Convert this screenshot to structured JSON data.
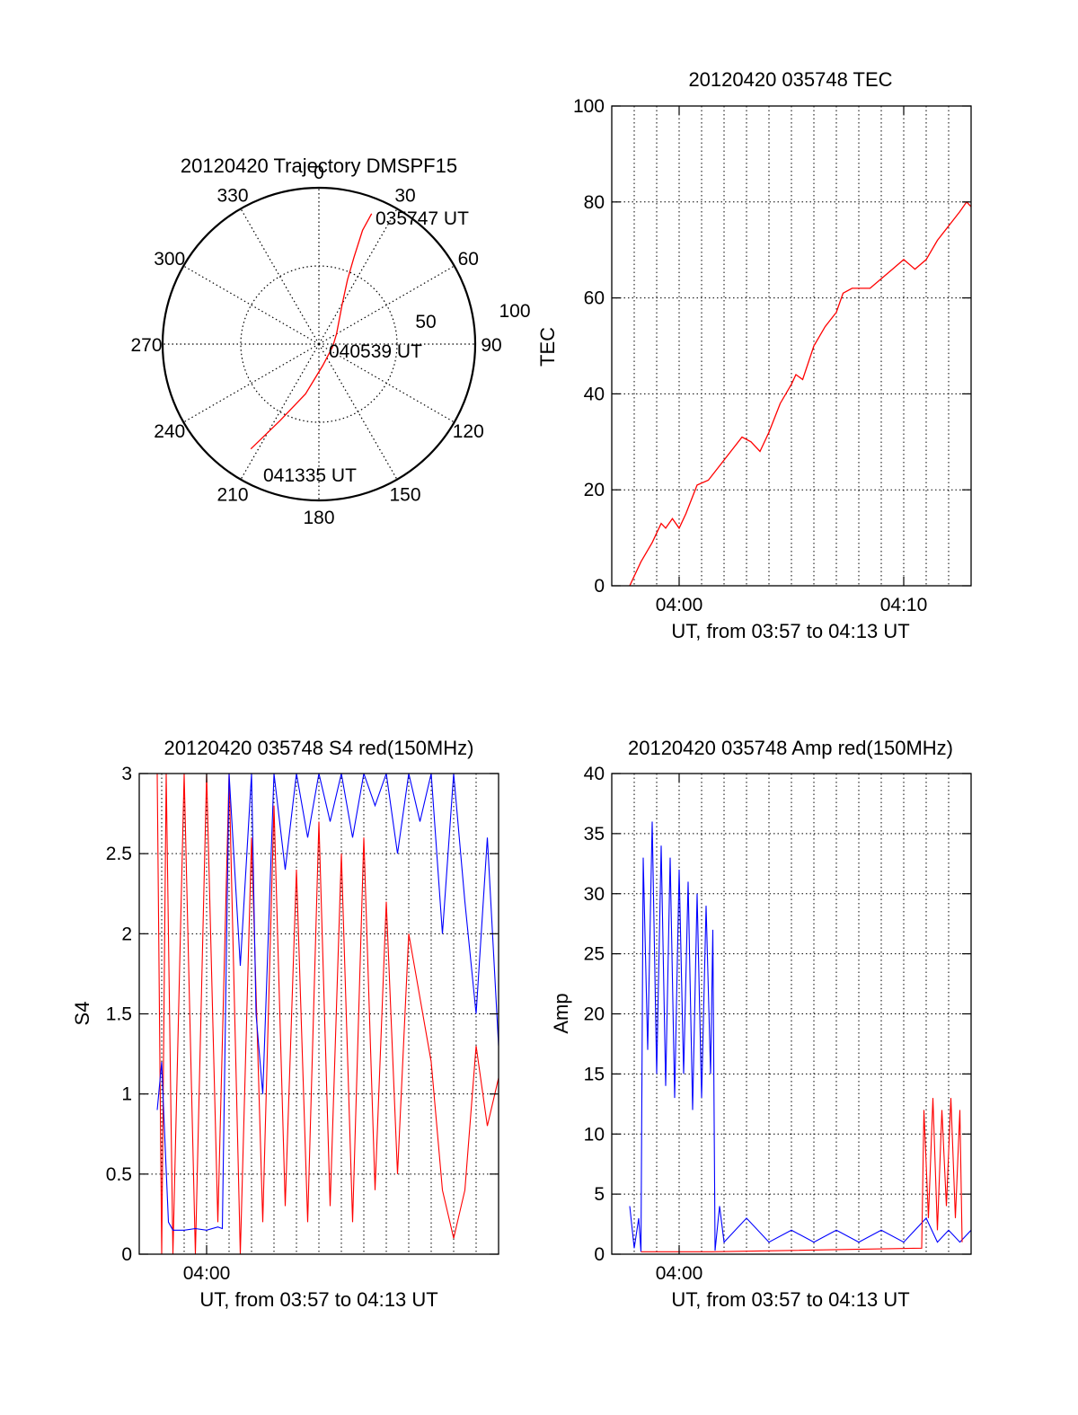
{
  "colors": {
    "red": "#ff0000",
    "blue": "#0000ff",
    "axis": "#000000",
    "grid": "#000000",
    "background": "#ffffff"
  },
  "chart_data": [
    {
      "id": "trajectory",
      "type": "scatter",
      "projection": "polar",
      "title": "20120420 Trajectory DMSPF15",
      "angle_labels": [
        "0",
        "30",
        "60",
        "90",
        "120",
        "150",
        "180",
        "210",
        "240",
        "270",
        "300",
        "330"
      ],
      "angle_values": [
        0,
        30,
        60,
        90,
        120,
        150,
        180,
        210,
        240,
        270,
        300,
        330
      ],
      "radial_labels": [
        "50",
        "100"
      ],
      "radial_values": [
        50,
        100
      ],
      "radial_range": [
        0,
        100
      ],
      "angle_direction": "clockwise from north",
      "grid": true,
      "series": [
        {
          "color": "red",
          "points": [
            {
              "az": 22,
              "r": 90
            },
            {
              "az": 21,
              "r": 78
            },
            {
              "az": 22,
              "r": 60
            },
            {
              "az": 24,
              "r": 45
            },
            {
              "az": 30,
              "r": 30
            },
            {
              "az": 60,
              "r": 13
            },
            {
              "az": 100,
              "r": 9
            },
            {
              "az": 170,
              "r": 14
            },
            {
              "az": 195,
              "r": 33
            },
            {
              "az": 207,
              "r": 55
            },
            {
              "az": 213,
              "r": 80
            }
          ]
        }
      ],
      "annotations": [
        {
          "text": "035747 UT"
        },
        {
          "text": "040539 UT"
        },
        {
          "text": "041335 UT"
        }
      ]
    },
    {
      "id": "tec",
      "type": "line",
      "title": "20120420 035748 TEC",
      "xlabel": "UT, from 03:57 to 04:13 UT",
      "ylabel": "TEC",
      "x_unit": "minutes after 03:57 UT",
      "xlim": [
        0,
        16
      ],
      "ylim": [
        0,
        100
      ],
      "yticks": [
        "0",
        "20",
        "40",
        "60",
        "80",
        "100"
      ],
      "xticks": [
        {
          "x": 3,
          "label": "04:00"
        },
        {
          "x": 13,
          "label": "04:10"
        }
      ],
      "x_gridlines": [
        1,
        2,
        3,
        4,
        5,
        6,
        7,
        8,
        9,
        10,
        11,
        12,
        13,
        14,
        15,
        16
      ],
      "grid": true,
      "series": [
        {
          "color": "red",
          "x": [
            0.8,
            1.3,
            1.8,
            2.2,
            2.4,
            2.7,
            3.0,
            3.3,
            3.8,
            4.3,
            4.8,
            5.3,
            5.8,
            6.2,
            6.6,
            7.0,
            7.5,
            8.0,
            8.2,
            8.5,
            9.0,
            9.5,
            10.0,
            10.3,
            10.7,
            11.0,
            11.5,
            12.0,
            12.5,
            13.0,
            13.5,
            14.0,
            14.5,
            15.0,
            15.5,
            15.8,
            16.0
          ],
          "y": [
            0,
            5,
            9,
            13,
            12,
            14,
            12,
            15,
            21,
            22,
            25,
            28,
            31,
            30,
            28,
            32,
            38,
            42,
            44,
            43,
            50,
            54,
            57,
            61,
            62,
            62,
            62,
            64,
            66,
            68,
            66,
            68,
            72,
            75,
            78,
            80,
            79
          ]
        }
      ]
    },
    {
      "id": "s4",
      "type": "line",
      "title": "20120420 035748 S4 red(150MHz)",
      "xlabel": "UT, from 03:57 to 04:13 UT",
      "ylabel": "S4",
      "x_unit": "minutes after 03:57 UT",
      "xlim": [
        0,
        16
      ],
      "ylim": [
        0,
        3
      ],
      "yticks": [
        "0",
        "0.5",
        "1",
        "1.5",
        "2",
        "2.5",
        "3"
      ],
      "xticks": [
        {
          "x": 3,
          "label": "04:00"
        }
      ],
      "x_gridlines": [
        1,
        2,
        3,
        4,
        5,
        6,
        7,
        8,
        9,
        10,
        11,
        12,
        13,
        14,
        15,
        16
      ],
      "grid": true,
      "series": [
        {
          "color": "red",
          "x": [
            0.8,
            1.0,
            1.2,
            1.5,
            2.0,
            2.5,
            3.0,
            3.5,
            4.0,
            4.5,
            5.0,
            5.5,
            6.0,
            6.5,
            7.0,
            7.5,
            8.0,
            8.5,
            9.0,
            9.5,
            10.0,
            10.5,
            11.0,
            11.5,
            12.0,
            12.5,
            13.0,
            13.5,
            14.0,
            14.5,
            15.0,
            15.5,
            16.0
          ],
          "y": [
            3.0,
            0.0,
            3.0,
            0.0,
            3.0,
            0.0,
            3.0,
            0.2,
            3.0,
            0.0,
            2.6,
            0.2,
            2.8,
            0.3,
            2.4,
            0.2,
            2.7,
            0.3,
            2.5,
            0.2,
            2.6,
            0.4,
            2.2,
            0.5,
            2.0,
            1.6,
            1.2,
            0.4,
            0.1,
            0.4,
            1.3,
            0.8,
            1.1
          ]
        },
        {
          "color": "blue",
          "x": [
            0.8,
            1.0,
            1.1,
            1.3,
            1.5,
            2.0,
            2.5,
            3.0,
            3.5,
            3.7,
            4.0,
            4.5,
            5.0,
            5.2,
            5.5,
            6.0,
            6.5,
            7.0,
            7.5,
            8.0,
            8.5,
            9.0,
            9.5,
            10.0,
            10.5,
            11.0,
            11.5,
            12.0,
            12.5,
            13.0,
            13.5,
            14.0,
            14.5,
            15.0,
            15.5,
            16.0
          ],
          "y": [
            0.9,
            1.2,
            0.85,
            0.2,
            0.15,
            0.15,
            0.16,
            0.15,
            0.17,
            0.16,
            3.0,
            1.8,
            3.0,
            1.5,
            1.0,
            3.0,
            2.4,
            3.0,
            2.6,
            3.0,
            2.7,
            3.0,
            2.6,
            3.0,
            2.8,
            3.0,
            2.5,
            3.0,
            2.7,
            3.0,
            2.0,
            3.0,
            2.2,
            1.5,
            2.6,
            1.3
          ]
        }
      ]
    },
    {
      "id": "amp",
      "type": "line",
      "title": "20120420 035748 Amp red(150MHz)",
      "xlabel": "UT, from 03:57 to 04:13 UT",
      "ylabel": "Amp",
      "x_unit": "minutes after 03:57 UT",
      "xlim": [
        0,
        16
      ],
      "ylim": [
        0,
        40
      ],
      "yticks": [
        "0",
        "5",
        "10",
        "15",
        "20",
        "25",
        "30",
        "35",
        "40"
      ],
      "xticks": [
        {
          "x": 3,
          "label": "04:00"
        }
      ],
      "x_gridlines": [
        1,
        2,
        3,
        4,
        5,
        6,
        7,
        8,
        9,
        10,
        11,
        12,
        13,
        14,
        15,
        16
      ],
      "grid": true,
      "series": [
        {
          "color": "blue",
          "x": [
            0.8,
            1.0,
            1.2,
            1.3,
            1.4,
            1.6,
            1.8,
            2.0,
            2.2,
            2.4,
            2.6,
            2.8,
            3.0,
            3.2,
            3.4,
            3.6,
            3.8,
            4.0,
            4.2,
            4.4,
            4.5,
            4.6,
            4.8,
            5.0,
            6.0,
            7.0,
            8.0,
            9.0,
            10.0,
            11.0,
            12.0,
            13.0,
            14.0,
            14.5,
            15.0,
            15.5,
            16.0
          ],
          "y": [
            4,
            0.5,
            3,
            0.2,
            33,
            17,
            36,
            15,
            34,
            14,
            33,
            13,
            32,
            15,
            31,
            12,
            30,
            13,
            29,
            15,
            27,
            0.3,
            4,
            1,
            3,
            1,
            2,
            1,
            2,
            1,
            2,
            1,
            3,
            1,
            2,
            1,
            2
          ]
        },
        {
          "color": "red",
          "x": [
            1.3,
            2.0,
            3.0,
            4.0,
            4.5,
            13.8,
            13.9,
            14.1,
            14.3,
            14.5,
            14.7,
            14.9,
            15.1,
            15.3,
            15.5,
            15.6
          ],
          "y": [
            0.2,
            0.2,
            0.2,
            0.2,
            0.2,
            0.5,
            12,
            3,
            13,
            2,
            12,
            4,
            13,
            3,
            12,
            1
          ]
        }
      ]
    }
  ]
}
